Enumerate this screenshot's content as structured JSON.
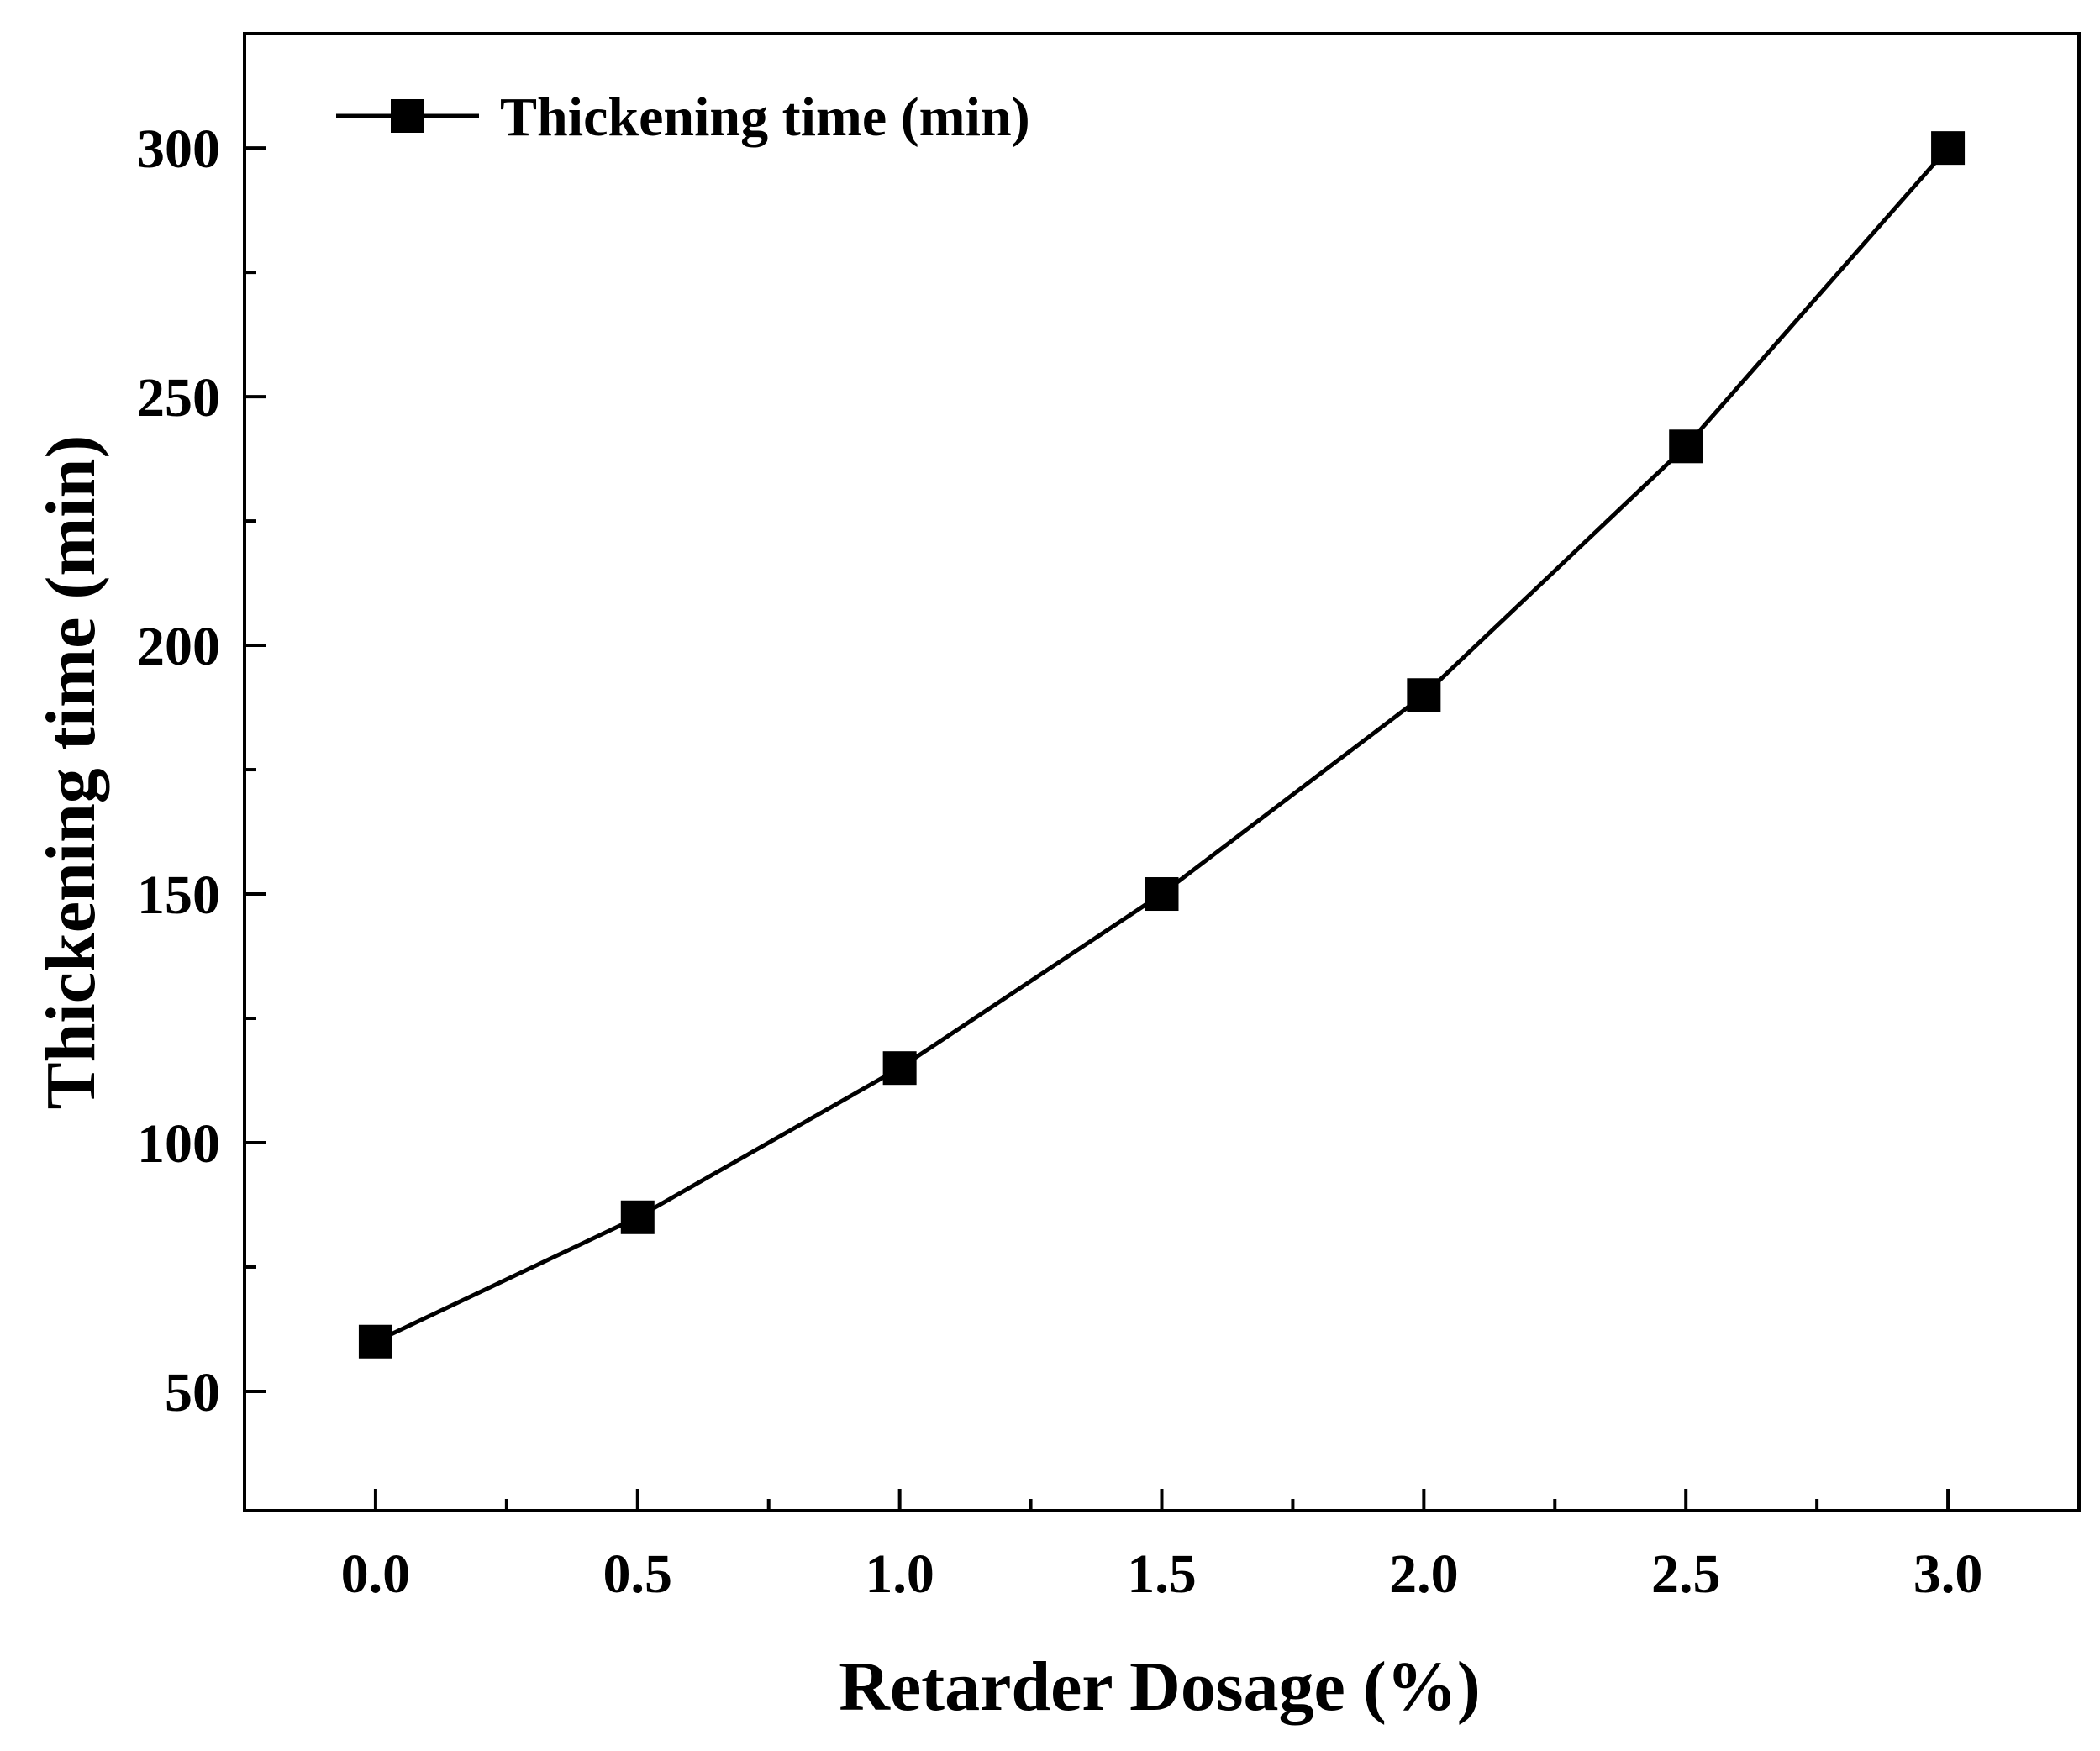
{
  "chart_data": {
    "type": "line",
    "title": "",
    "xlabel": "Retarder Dosage (%)",
    "ylabel": "Thickening time (min)",
    "xlim": [
      -0.25,
      3.25
    ],
    "ylim": [
      26,
      323
    ],
    "x_ticks": [
      0.0,
      0.5,
      1.0,
      1.5,
      2.0,
      2.5,
      3.0
    ],
    "x_tick_labels": [
      "0.0",
      "0.5",
      "1.0",
      "1.5",
      "2.0",
      "2.5",
      "3.0"
    ],
    "x_minor_ticks": [
      0.25,
      0.75,
      1.25,
      1.75,
      2.25,
      2.75
    ],
    "y_ticks": [
      50,
      100,
      150,
      200,
      250,
      300
    ],
    "y_tick_labels": [
      "50",
      "100",
      "150",
      "200",
      "250",
      "300"
    ],
    "y_minor_ticks": [
      75,
      125,
      175,
      225,
      275
    ],
    "grid": false,
    "legend_position": "top-left",
    "series": [
      {
        "name": "Thickening time (min)",
        "marker": "square",
        "color": "#000000",
        "x": [
          0.0,
          0.5,
          1.0,
          1.5,
          2.0,
          2.5,
          3.0
        ],
        "y": [
          60,
          85,
          115,
          150,
          190,
          240,
          300
        ]
      }
    ]
  }
}
